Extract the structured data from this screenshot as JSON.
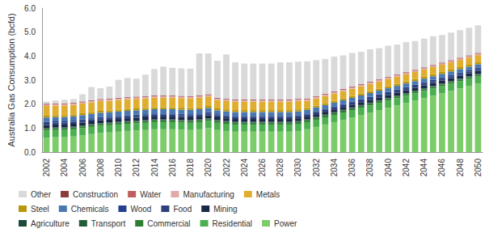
{
  "chart_data": {
    "type": "bar",
    "stacked": true,
    "y_label": "Australia Gas Consumption (bcfd)",
    "categories": [
      "2002",
      null,
      "2004",
      null,
      "2006",
      null,
      "2008",
      null,
      "2010",
      null,
      "2012",
      null,
      "2014",
      null,
      "2016",
      null,
      "2018",
      null,
      "2020",
      null,
      "2022",
      null,
      "2024",
      null,
      "2026",
      null,
      "2028",
      null,
      "2030",
      null,
      "2032",
      null,
      "2034",
      null,
      "2036",
      null,
      "2038",
      null,
      "2040",
      null,
      "2042",
      null,
      "2044",
      null,
      "2046",
      null,
      "2048",
      null,
      "2050"
    ],
    "ylim": [
      0,
      6
    ],
    "yticks": [
      {
        "value": 0,
        "label": "0.0"
      },
      {
        "value": 1,
        "label": "1.0"
      },
      {
        "value": 2,
        "label": "2.0"
      },
      {
        "value": 3,
        "label": "3.0"
      },
      {
        "value": 4,
        "label": "4.0"
      },
      {
        "value": 5,
        "label": "5.0"
      },
      {
        "value": 6,
        "label": "6.0"
      }
    ],
    "grid": false,
    "legend": "bottom",
    "series": [
      {
        "name": "Other",
        "color": "#d9d9d9",
        "values": [
          0.1,
          0.12,
          0.15,
          0.15,
          0.3,
          0.55,
          0.45,
          0.5,
          0.75,
          0.8,
          0.75,
          0.9,
          1.1,
          1.2,
          1.15,
          1.15,
          1.15,
          1.75,
          1.7,
          1.55,
          1.85,
          1.55,
          1.5,
          1.5,
          1.5,
          1.5,
          1.55,
          1.55,
          1.55,
          1.55,
          1.5,
          1.45,
          1.45,
          1.4,
          1.4,
          1.35,
          1.35,
          1.3,
          1.3,
          1.25,
          1.25,
          1.2,
          1.2,
          1.2,
          1.15,
          1.15,
          1.15,
          1.15,
          1.15
        ]
      },
      {
        "name": "Construction",
        "color": "#8c3b3b",
        "values": [
          0.02,
          0.02,
          0.02,
          0.02,
          0.02,
          0.02,
          0.02,
          0.02,
          0.02,
          0.02,
          0.02,
          0.02,
          0.02,
          0.02,
          0.02,
          0.02,
          0.02,
          0.02,
          0.02,
          0.02,
          0.02,
          0.02,
          0.02,
          0.02,
          0.02,
          0.02,
          0.02,
          0.02,
          0.02,
          0.02,
          0.02,
          0.02,
          0.02,
          0.02,
          0.02,
          0.02,
          0.02,
          0.02,
          0.02,
          0.02,
          0.02,
          0.02,
          0.02,
          0.02,
          0.02,
          0.02,
          0.02,
          0.02,
          0.02
        ]
      },
      {
        "name": "Water",
        "color": "#c0605e",
        "values": [
          0.02,
          0.02,
          0.02,
          0.02,
          0.02,
          0.02,
          0.02,
          0.02,
          0.02,
          0.02,
          0.02,
          0.02,
          0.02,
          0.02,
          0.02,
          0.02,
          0.02,
          0.02,
          0.02,
          0.02,
          0.02,
          0.02,
          0.02,
          0.02,
          0.02,
          0.02,
          0.02,
          0.02,
          0.02,
          0.02,
          0.02,
          0.02,
          0.02,
          0.02,
          0.02,
          0.02,
          0.02,
          0.02,
          0.02,
          0.02,
          0.02,
          0.02,
          0.02,
          0.02,
          0.02,
          0.02,
          0.02,
          0.02,
          0.02
        ]
      },
      {
        "name": "Manufacturing",
        "color": "#e3a9a9",
        "values": [
          0.05,
          0.05,
          0.05,
          0.05,
          0.05,
          0.05,
          0.05,
          0.05,
          0.05,
          0.05,
          0.05,
          0.05,
          0.05,
          0.05,
          0.05,
          0.05,
          0.05,
          0.05,
          0.05,
          0.05,
          0.05,
          0.05,
          0.05,
          0.05,
          0.05,
          0.05,
          0.05,
          0.05,
          0.05,
          0.05,
          0.05,
          0.05,
          0.05,
          0.05,
          0.05,
          0.05,
          0.05,
          0.05,
          0.05,
          0.05,
          0.05,
          0.05,
          0.05,
          0.05,
          0.05,
          0.05,
          0.05,
          0.05,
          0.05
        ]
      },
      {
        "name": "Metals",
        "color": "#e0ae2e",
        "values": [
          0.4,
          0.4,
          0.4,
          0.4,
          0.4,
          0.4,
          0.4,
          0.4,
          0.4,
          0.4,
          0.4,
          0.4,
          0.4,
          0.4,
          0.4,
          0.4,
          0.4,
          0.4,
          0.4,
          0.35,
          0.35,
          0.35,
          0.35,
          0.35,
          0.35,
          0.35,
          0.35,
          0.35,
          0.35,
          0.3,
          0.3,
          0.3,
          0.3,
          0.3,
          0.3,
          0.3,
          0.3,
          0.3,
          0.3,
          0.3,
          0.3,
          0.3,
          0.3,
          0.3,
          0.3,
          0.3,
          0.3,
          0.3,
          0.3
        ]
      },
      {
        "name": "Steel",
        "color": "#b8960f",
        "values": [
          0.08,
          0.08,
          0.08,
          0.08,
          0.08,
          0.08,
          0.08,
          0.08,
          0.08,
          0.08,
          0.08,
          0.08,
          0.08,
          0.08,
          0.08,
          0.08,
          0.08,
          0.08,
          0.08,
          0.08,
          0.08,
          0.08,
          0.08,
          0.08,
          0.08,
          0.08,
          0.08,
          0.08,
          0.08,
          0.08,
          0.08,
          0.08,
          0.08,
          0.08,
          0.08,
          0.08,
          0.08,
          0.08,
          0.08,
          0.08,
          0.08,
          0.08,
          0.08,
          0.08,
          0.08,
          0.08,
          0.08,
          0.08,
          0.08
        ]
      },
      {
        "name": "Chemicals",
        "color": "#4a78b0",
        "values": [
          0.18,
          0.18,
          0.18,
          0.18,
          0.18,
          0.18,
          0.18,
          0.18,
          0.18,
          0.18,
          0.18,
          0.18,
          0.18,
          0.18,
          0.18,
          0.18,
          0.18,
          0.18,
          0.18,
          0.16,
          0.16,
          0.16,
          0.16,
          0.16,
          0.16,
          0.16,
          0.16,
          0.16,
          0.16,
          0.15,
          0.15,
          0.15,
          0.15,
          0.15,
          0.15,
          0.15,
          0.15,
          0.15,
          0.15,
          0.15,
          0.15,
          0.15,
          0.15,
          0.15,
          0.15,
          0.15,
          0.15,
          0.15,
          0.15
        ]
      },
      {
        "name": "Wood",
        "color": "#23408c",
        "values": [
          0.05,
          0.05,
          0.05,
          0.05,
          0.05,
          0.05,
          0.05,
          0.05,
          0.05,
          0.05,
          0.05,
          0.05,
          0.05,
          0.05,
          0.05,
          0.05,
          0.05,
          0.05,
          0.05,
          0.05,
          0.05,
          0.05,
          0.05,
          0.05,
          0.05,
          0.05,
          0.05,
          0.05,
          0.05,
          0.05,
          0.05,
          0.05,
          0.05,
          0.05,
          0.05,
          0.05,
          0.05,
          0.05,
          0.05,
          0.05,
          0.05,
          0.05,
          0.05,
          0.05,
          0.05,
          0.05,
          0.05,
          0.05,
          0.05
        ]
      },
      {
        "name": "Food",
        "color": "#2d3f7c",
        "values": [
          0.08,
          0.08,
          0.08,
          0.08,
          0.08,
          0.08,
          0.08,
          0.08,
          0.08,
          0.08,
          0.08,
          0.08,
          0.08,
          0.08,
          0.08,
          0.08,
          0.08,
          0.08,
          0.08,
          0.08,
          0.08,
          0.08,
          0.08,
          0.08,
          0.08,
          0.08,
          0.08,
          0.08,
          0.08,
          0.08,
          0.08,
          0.08,
          0.08,
          0.08,
          0.08,
          0.08,
          0.08,
          0.08,
          0.08,
          0.08,
          0.08,
          0.08,
          0.08,
          0.08,
          0.08,
          0.08,
          0.08,
          0.08,
          0.08
        ]
      },
      {
        "name": "Mining",
        "color": "#1b2948",
        "values": [
          0.12,
          0.12,
          0.12,
          0.12,
          0.12,
          0.12,
          0.12,
          0.12,
          0.12,
          0.12,
          0.12,
          0.12,
          0.12,
          0.12,
          0.12,
          0.12,
          0.12,
          0.12,
          0.12,
          0.12,
          0.12,
          0.12,
          0.12,
          0.12,
          0.12,
          0.12,
          0.12,
          0.12,
          0.12,
          0.12,
          0.12,
          0.12,
          0.12,
          0.12,
          0.12,
          0.12,
          0.12,
          0.12,
          0.12,
          0.12,
          0.12,
          0.12,
          0.12,
          0.12,
          0.12,
          0.12,
          0.12,
          0.12,
          0.12
        ]
      },
      {
        "name": "Agriculture",
        "color": "#1e4a3a",
        "values": [
          0.02,
          0.02,
          0.02,
          0.02,
          0.02,
          0.02,
          0.02,
          0.02,
          0.02,
          0.02,
          0.02,
          0.02,
          0.02,
          0.02,
          0.02,
          0.02,
          0.02,
          0.02,
          0.02,
          0.02,
          0.02,
          0.02,
          0.02,
          0.02,
          0.02,
          0.02,
          0.02,
          0.02,
          0.02,
          0.02,
          0.02,
          0.02,
          0.02,
          0.02,
          0.02,
          0.02,
          0.02,
          0.02,
          0.02,
          0.02,
          0.02,
          0.02,
          0.02,
          0.02,
          0.02,
          0.02,
          0.02,
          0.02,
          0.02
        ]
      },
      {
        "name": "Transport",
        "color": "#245c3a",
        "values": [
          0.02,
          0.02,
          0.02,
          0.02,
          0.02,
          0.02,
          0.02,
          0.02,
          0.02,
          0.02,
          0.02,
          0.02,
          0.02,
          0.02,
          0.02,
          0.02,
          0.02,
          0.02,
          0.02,
          0.02,
          0.02,
          0.02,
          0.02,
          0.02,
          0.02,
          0.02,
          0.02,
          0.02,
          0.02,
          0.02,
          0.02,
          0.02,
          0.02,
          0.02,
          0.02,
          0.02,
          0.02,
          0.02,
          0.02,
          0.02,
          0.02,
          0.02,
          0.02,
          0.02,
          0.02,
          0.02,
          0.02,
          0.02,
          0.02
        ]
      },
      {
        "name": "Commercial",
        "color": "#2e7d32",
        "values": [
          0.07,
          0.07,
          0.07,
          0.07,
          0.07,
          0.07,
          0.07,
          0.07,
          0.07,
          0.07,
          0.07,
          0.07,
          0.07,
          0.07,
          0.07,
          0.07,
          0.07,
          0.07,
          0.07,
          0.07,
          0.07,
          0.07,
          0.07,
          0.07,
          0.07,
          0.07,
          0.07,
          0.07,
          0.07,
          0.07,
          0.07,
          0.07,
          0.07,
          0.07,
          0.07,
          0.07,
          0.07,
          0.07,
          0.07,
          0.07,
          0.07,
          0.07,
          0.07,
          0.07,
          0.07,
          0.07,
          0.07,
          0.07,
          0.07
        ]
      },
      {
        "name": "Residential",
        "color": "#4caf50",
        "values": [
          0.3,
          0.3,
          0.3,
          0.3,
          0.3,
          0.3,
          0.3,
          0.3,
          0.3,
          0.3,
          0.3,
          0.3,
          0.3,
          0.3,
          0.3,
          0.3,
          0.3,
          0.3,
          0.3,
          0.3,
          0.3,
          0.3,
          0.3,
          0.3,
          0.3,
          0.3,
          0.3,
          0.3,
          0.3,
          0.3,
          0.3,
          0.3,
          0.3,
          0.3,
          0.3,
          0.3,
          0.3,
          0.3,
          0.3,
          0.3,
          0.3,
          0.3,
          0.3,
          0.3,
          0.3,
          0.3,
          0.3,
          0.3,
          0.3
        ]
      },
      {
        "name": "Power",
        "color": "#7dcc6a",
        "values": [
          0.6,
          0.62,
          0.62,
          0.65,
          0.7,
          0.75,
          0.8,
          0.82,
          0.85,
          0.88,
          0.9,
          0.92,
          0.95,
          0.95,
          0.95,
          0.93,
          0.92,
          0.95,
          1.0,
          0.92,
          0.88,
          0.85,
          0.85,
          0.85,
          0.85,
          0.85,
          0.85,
          0.85,
          0.88,
          0.95,
          1.05,
          1.15,
          1.25,
          1.35,
          1.45,
          1.55,
          1.65,
          1.75,
          1.85,
          1.95,
          2.05,
          2.15,
          2.25,
          2.35,
          2.45,
          2.55,
          2.65,
          2.75,
          2.85
        ]
      }
    ]
  }
}
